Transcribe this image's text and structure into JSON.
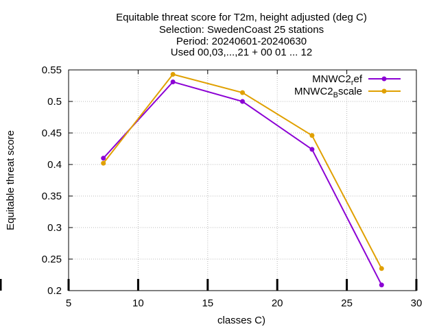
{
  "chart_data": {
    "type": "line",
    "title_lines": [
      "Equitable threat score  for T2m, height adjusted (deg C)",
      "Selection: SwedenCoast     25 stations",
      "Period: 20240601-20240630",
      "Used 00,03,...,21 + 00 01 ... 12"
    ],
    "xlabel": "classes C)",
    "ylabel": "Equitable threat score",
    "xlim": [
      5,
      30
    ],
    "ylim": [
      0.2,
      0.55
    ],
    "xticks": [
      5,
      10,
      15,
      20,
      25,
      30
    ],
    "yticks": [
      0.2,
      0.25,
      0.3,
      0.35,
      0.4,
      0.45,
      0.5,
      0.55
    ],
    "ytick_labels": [
      "0.2",
      "0.25",
      "0.3",
      "0.35",
      "0.4",
      "0.45",
      "0.5",
      "0.55"
    ],
    "grid": true,
    "legend_position": "top-right",
    "x": [
      7.5,
      12.5,
      17.5,
      22.5,
      27.5
    ],
    "series": [
      {
        "name_main": "MNWC2",
        "name_sub": "r",
        "name_tail": "ef",
        "color": "#8b00d4",
        "values": [
          0.41,
          0.531,
          0.5,
          0.424,
          0.209
        ]
      },
      {
        "name_main": "MNWC2",
        "name_sub": "B",
        "name_tail": "scale",
        "color": "#e0a000",
        "values": [
          0.402,
          0.543,
          0.514,
          0.446,
          0.235
        ]
      }
    ]
  }
}
